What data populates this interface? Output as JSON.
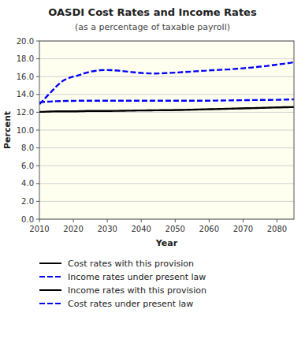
{
  "chart_data": {
    "type": "line",
    "title": "OASDI Cost Rates and Income Rates",
    "subtitle": "(as a percentage of taxable payroll)",
    "x_label": "Year",
    "y_label": "Percent",
    "xlim": [
      2010,
      2085
    ],
    "ylim": [
      0.0,
      20.0
    ],
    "xticks": [
      2010,
      2020,
      2030,
      2040,
      2050,
      2060,
      2070,
      2080
    ],
    "yticks": [
      {
        "value": 0.0,
        "label": "0.0"
      },
      {
        "value": 2.0,
        "label": "2.0"
      },
      {
        "value": 4.0,
        "label": "4.0"
      },
      {
        "value": 6.0,
        "label": "6.0"
      },
      {
        "value": 8.0,
        "label": "8.0"
      },
      {
        "value": 10.0,
        "label": "10.0"
      },
      {
        "value": 12.0,
        "label": "12.0"
      },
      {
        "value": 14.0,
        "label": "14.0"
      },
      {
        "value": 16.0,
        "label": "16.0"
      },
      {
        "value": 18.0,
        "label": "18.0"
      },
      {
        "value": 20.0,
        "label": "20.0"
      }
    ],
    "grid": true,
    "x": [
      2010,
      2011,
      2012,
      2013,
      2014,
      2015,
      2016,
      2017,
      2018,
      2019,
      2020,
      2021,
      2022,
      2023,
      2024,
      2025,
      2026,
      2027,
      2028,
      2029,
      2030,
      2031,
      2032,
      2033,
      2034,
      2035,
      2036,
      2037,
      2038,
      2039,
      2040,
      2041,
      2042,
      2043,
      2044,
      2045,
      2046,
      2047,
      2048,
      2049,
      2050,
      2051,
      2052,
      2053,
      2054,
      2055,
      2056,
      2057,
      2058,
      2059,
      2060,
      2061,
      2062,
      2063,
      2064,
      2065,
      2066,
      2067,
      2068,
      2069,
      2070,
      2071,
      2072,
      2073,
      2074,
      2075,
      2076,
      2077,
      2078,
      2079,
      2080,
      2081,
      2082,
      2083,
      2084,
      2085
    ],
    "series": [
      {
        "name": "Cost rates with this provision",
        "color": "black",
        "line_style": "solid",
        "values": [
          12.05,
          12.05,
          12.07,
          12.08,
          12.09,
          12.1,
          12.1,
          12.1,
          12.1,
          12.1,
          12.1,
          12.1,
          12.12,
          12.13,
          12.14,
          12.15,
          12.15,
          12.15,
          12.15,
          12.15,
          12.15,
          12.15,
          12.16,
          12.16,
          12.17,
          12.17,
          12.18,
          12.18,
          12.19,
          12.2,
          12.2,
          12.2,
          12.21,
          12.21,
          12.22,
          12.22,
          12.23,
          12.23,
          12.24,
          12.24,
          12.25,
          12.25,
          12.26,
          12.27,
          12.28,
          12.29,
          12.3,
          12.31,
          12.32,
          12.33,
          12.34,
          12.35,
          12.36,
          12.37,
          12.38,
          12.39,
          12.4,
          12.41,
          12.42,
          12.43,
          12.44,
          12.45,
          12.46,
          12.47,
          12.48,
          12.49,
          12.5,
          12.51,
          12.52,
          12.53,
          12.54,
          12.55,
          12.56,
          12.57,
          12.58,
          12.59
        ]
      },
      {
        "name": "Income rates under present law",
        "color": "blue",
        "line_style": "dashed",
        "values": [
          13.1,
          13.15,
          13.18,
          13.2,
          13.22,
          13.24,
          13.25,
          13.26,
          13.27,
          13.28,
          13.28,
          13.29,
          13.29,
          13.3,
          13.3,
          13.3,
          13.3,
          13.3,
          13.3,
          13.3,
          13.3,
          13.3,
          13.3,
          13.3,
          13.3,
          13.3,
          13.3,
          13.3,
          13.3,
          13.3,
          13.3,
          13.3,
          13.3,
          13.3,
          13.3,
          13.3,
          13.3,
          13.3,
          13.3,
          13.3,
          13.3,
          13.3,
          13.3,
          13.3,
          13.3,
          13.3,
          13.3,
          13.3,
          13.3,
          13.3,
          13.3,
          13.31,
          13.31,
          13.32,
          13.32,
          13.33,
          13.33,
          13.34,
          13.34,
          13.35,
          13.35,
          13.36,
          13.36,
          13.37,
          13.37,
          13.38,
          13.38,
          13.39,
          13.39,
          13.4,
          13.4,
          13.41,
          13.42,
          13.43,
          13.44,
          13.45
        ]
      },
      {
        "name": "Income rates with this provision",
        "color": "black",
        "line_style": "solid",
        "values": [
          12.05,
          12.05,
          12.07,
          12.08,
          12.09,
          12.1,
          12.1,
          12.1,
          12.1,
          12.1,
          12.1,
          12.1,
          12.12,
          12.13,
          12.14,
          12.15,
          12.15,
          12.15,
          12.15,
          12.15,
          12.15,
          12.15,
          12.16,
          12.16,
          12.17,
          12.17,
          12.18,
          12.18,
          12.19,
          12.2,
          12.2,
          12.2,
          12.21,
          12.21,
          12.22,
          12.22,
          12.23,
          12.23,
          12.24,
          12.24,
          12.25,
          12.25,
          12.26,
          12.27,
          12.28,
          12.29,
          12.3,
          12.31,
          12.32,
          12.33,
          12.34,
          12.35,
          12.36,
          12.37,
          12.38,
          12.39,
          12.4,
          12.41,
          12.42,
          12.43,
          12.44,
          12.45,
          12.46,
          12.47,
          12.48,
          12.49,
          12.5,
          12.51,
          12.52,
          12.53,
          12.54,
          12.55,
          12.56,
          12.57,
          12.58,
          12.59
        ]
      },
      {
        "name": "Cost rates under present law",
        "color": "blue",
        "line_style": "dashed",
        "values": [
          12.9,
          13.3,
          13.7,
          14.1,
          14.5,
          14.9,
          15.25,
          15.55,
          15.75,
          15.9,
          16.0,
          16.1,
          16.2,
          16.35,
          16.45,
          16.55,
          16.62,
          16.68,
          16.72,
          16.74,
          16.74,
          16.73,
          16.71,
          16.68,
          16.64,
          16.6,
          16.56,
          16.52,
          16.48,
          16.44,
          16.41,
          16.39,
          16.37,
          16.36,
          16.35,
          16.36,
          16.37,
          16.39,
          16.41,
          16.43,
          16.45,
          16.47,
          16.5,
          16.52,
          16.55,
          16.57,
          16.6,
          16.62,
          16.65,
          16.67,
          16.7,
          16.72,
          16.74,
          16.76,
          16.78,
          16.8,
          16.82,
          16.85,
          16.88,
          16.91,
          16.94,
          16.97,
          17.0,
          17.04,
          17.08,
          17.12,
          17.16,
          17.2,
          17.25,
          17.3,
          17.35,
          17.4,
          17.45,
          17.5,
          17.55,
          17.62
        ]
      }
    ]
  }
}
